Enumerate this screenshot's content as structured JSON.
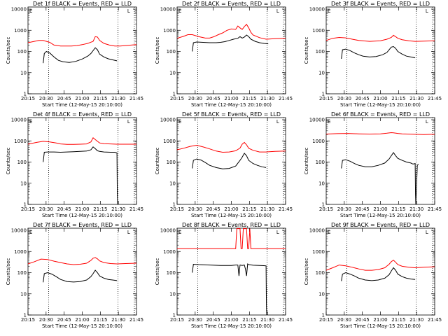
{
  "chart_data": [
    {
      "type": "line",
      "title": "Det 1f BLACK = Events, RED = LLD",
      "xlabel": "Start Time (12-May-15 20:10:00)",
      "ylabel": "Counts/sec",
      "x_ticks": [
        "20:15",
        "20:30",
        "20:45",
        "21:00",
        "21:15",
        "21:30",
        "21:45"
      ],
      "y_ticks": [
        "1",
        "10",
        "100",
        "1000",
        "10000"
      ],
      "xlim": [
        0,
        100
      ],
      "ylim_log10": [
        0,
        4.1
      ],
      "markers": [
        "E",
        "F",
        "L"
      ],
      "series": [
        {
          "name": "RED = LLD",
          "color": "#ff0000",
          "x": [
            0,
            10,
            14,
            20,
            24,
            30,
            40,
            45,
            50,
            55,
            60,
            62,
            64,
            66,
            70,
            75,
            80,
            85,
            90,
            95,
            100
          ],
          "y": [
            260,
            330,
            330,
            270,
            200,
            180,
            180,
            190,
            210,
            240,
            300,
            500,
            480,
            330,
            240,
            200,
            180,
            180,
            190,
            200,
            210
          ]
        },
        {
          "name": "BLACK = Events",
          "color": "#000000",
          "x": [
            14,
            15,
            17,
            20,
            24,
            28,
            32,
            38,
            44,
            50,
            55,
            58,
            62,
            64,
            66,
            70,
            74,
            78,
            82
          ],
          "y": [
            28,
            80,
            100,
            85,
            55,
            38,
            33,
            30,
            34,
            44,
            60,
            80,
            150,
            120,
            75,
            55,
            45,
            40,
            36
          ]
        }
      ]
    },
    {
      "type": "line",
      "title": "Det 2f BLACK = Events, RED = LLD",
      "xlabel": "Start Time (12-May-15 20:10:00)",
      "ylabel": "Counts/sec",
      "x_ticks": [
        "20:15",
        "20:30",
        "20:45",
        "21:00",
        "21:15",
        "21:30",
        "21:45"
      ],
      "y_ticks": [
        "1",
        "10",
        "100",
        "1000",
        "10000"
      ],
      "xlim": [
        0,
        100
      ],
      "ylim_log10": [
        0,
        4.1
      ],
      "markers": [
        "E",
        "F",
        "L"
      ],
      "series": [
        {
          "name": "RED = LLD",
          "color": "#ff0000",
          "x": [
            0,
            6,
            10,
            14,
            20,
            26,
            30,
            34,
            38,
            42,
            46,
            50,
            54,
            56,
            58,
            60,
            62,
            64,
            66,
            68,
            70,
            76,
            82,
            90,
            100
          ],
          "y": [
            420,
            520,
            620,
            620,
            500,
            430,
            430,
            500,
            620,
            750,
            1000,
            1150,
            1100,
            1600,
            1300,
            1100,
            1500,
            1900,
            1300,
            800,
            600,
            450,
            380,
            400,
            420
          ]
        },
        {
          "name": "BLACK = Events",
          "color": "#000000",
          "x": [
            14,
            15,
            18,
            24,
            30,
            36,
            40,
            44,
            48,
            52,
            56,
            58,
            60,
            62,
            64,
            66,
            68,
            72,
            76,
            80,
            84
          ],
          "y": [
            100,
            260,
            280,
            270,
            260,
            260,
            270,
            290,
            330,
            380,
            420,
            500,
            430,
            480,
            600,
            500,
            380,
            300,
            260,
            240,
            230
          ]
        }
      ]
    },
    {
      "type": "line",
      "title": "Det 3f BLACK = Events, RED = LLD",
      "xlabel": "Start Time (12-May-15 20:10:00)",
      "ylabel": "Counts/sec",
      "x_ticks": [
        "20:15",
        "20:30",
        "20:45",
        "21:00",
        "21:15",
        "21:30",
        "21:45"
      ],
      "y_ticks": [
        "1",
        "10",
        "100",
        "1000",
        "10000"
      ],
      "xlim": [
        0,
        100
      ],
      "ylim_log10": [
        0,
        4.1
      ],
      "markers": [
        "E",
        "F",
        "L"
      ],
      "series": [
        {
          "name": "RED = LLD",
          "color": "#ff0000",
          "x": [
            0,
            6,
            12,
            18,
            24,
            30,
            40,
            50,
            56,
            60,
            62,
            64,
            66,
            70,
            76,
            82,
            90,
            100
          ],
          "y": [
            330,
            420,
            460,
            440,
            380,
            330,
            300,
            320,
            380,
            460,
            580,
            500,
            420,
            360,
            320,
            300,
            310,
            320
          ]
        },
        {
          "name": "BLACK = Events",
          "color": "#000000",
          "x": [
            14,
            15,
            18,
            22,
            26,
            30,
            34,
            40,
            46,
            52,
            56,
            58,
            60,
            62,
            64,
            66,
            70,
            74,
            78,
            82
          ],
          "y": [
            45,
            120,
            130,
            110,
            85,
            70,
            60,
            55,
            58,
            70,
            90,
            120,
            160,
            170,
            140,
            100,
            75,
            60,
            55,
            50
          ]
        }
      ]
    },
    {
      "type": "line",
      "title": "Det 4f BLACK = Events, RED = LLD",
      "xlabel": "Start Time (12-May-15 20:10:00)",
      "ylabel": "Counts/sec",
      "x_ticks": [
        "20:15",
        "20:30",
        "20:45",
        "21:00",
        "21:15",
        "21:30",
        "21:45"
      ],
      "y_ticks": [
        "1",
        "10",
        "100",
        "1000",
        "10000"
      ],
      "xlim": [
        0,
        100
      ],
      "ylim_log10": [
        0,
        4.1
      ],
      "markers": [
        "E",
        "F",
        "L"
      ],
      "series": [
        {
          "name": "RED = LLD",
          "color": "#ff0000",
          "x": [
            0,
            8,
            14,
            20,
            26,
            30,
            36,
            42,
            48,
            54,
            58,
            60,
            62,
            64,
            66,
            70,
            76,
            82,
            90,
            100
          ],
          "y": [
            700,
            850,
            950,
            900,
            800,
            720,
            680,
            680,
            700,
            720,
            900,
            1400,
            1150,
            950,
            800,
            740,
            720,
            700,
            700,
            700
          ]
        },
        {
          "name": "BLACK = Events",
          "color": "#000000",
          "x": [
            14,
            15,
            18,
            24,
            30,
            36,
            42,
            48,
            54,
            58,
            60,
            62,
            64,
            66,
            70,
            76,
            80,
            82,
            82.3,
            82.6
          ],
          "y": [
            100,
            290,
            300,
            300,
            290,
            300,
            310,
            320,
            330,
            380,
            520,
            430,
            340,
            320,
            300,
            290,
            290,
            270,
            3,
            1
          ]
        }
      ]
    },
    {
      "type": "line",
      "title": "Det 5f BLACK = Events, RED = LLD",
      "xlabel": "Start Time (12-May-15 20:10:00)",
      "ylabel": "Counts/sec",
      "x_ticks": [
        "20:15",
        "20:30",
        "20:45",
        "21:00",
        "21:15",
        "21:30",
        "21:45"
      ],
      "y_ticks": [
        "1",
        "10",
        "100",
        "1000",
        "10000"
      ],
      "xlim": [
        0,
        100
      ],
      "ylim_log10": [
        0,
        4.1
      ],
      "markers": [
        "E",
        "F",
        "L"
      ],
      "series": [
        {
          "name": "RED = LLD",
          "color": "#ff0000",
          "x": [
            0,
            6,
            12,
            18,
            24,
            30,
            36,
            42,
            48,
            54,
            58,
            60,
            62,
            64,
            66,
            70,
            76,
            82,
            90,
            100
          ],
          "y": [
            380,
            450,
            550,
            620,
            520,
            420,
            330,
            290,
            300,
            340,
            460,
            700,
            850,
            650,
            450,
            360,
            300,
            300,
            320,
            330
          ]
        },
        {
          "name": "BLACK = Events",
          "color": "#000000",
          "x": [
            14,
            15,
            18,
            22,
            26,
            30,
            36,
            42,
            48,
            54,
            58,
            60,
            62,
            64,
            66,
            70,
            74,
            78,
            82
          ],
          "y": [
            50,
            120,
            140,
            125,
            95,
            70,
            55,
            48,
            50,
            65,
            120,
            170,
            260,
            200,
            120,
            85,
            70,
            60,
            55
          ]
        }
      ]
    },
    {
      "type": "line",
      "title": "Det 6f BLACK = Events, RED = LLD",
      "xlabel": "Start Time (12-May-15 20:10:00)",
      "ylabel": "Counts/sec",
      "x_ticks": [
        "20:15",
        "20:30",
        "20:45",
        "21:00",
        "21:15",
        "21:30",
        "21:45"
      ],
      "y_ticks": [
        "1",
        "10",
        "100",
        "1000",
        "10000"
      ],
      "xlim": [
        0,
        100
      ],
      "ylim_log10": [
        0,
        4.1
      ],
      "markers": [
        "E",
        "F",
        "L"
      ],
      "series": [
        {
          "name": "RED = LLD",
          "color": "#ff0000",
          "x": [
            0,
            10,
            20,
            30,
            40,
            50,
            56,
            60,
            62,
            66,
            70,
            80,
            90,
            100
          ],
          "y": [
            2100,
            2200,
            2250,
            2150,
            2100,
            2150,
            2300,
            2450,
            2400,
            2250,
            2150,
            2050,
            2000,
            2050
          ]
        },
        {
          "name": "BLACK = Events",
          "color": "#000000",
          "x": [
            14,
            15,
            18,
            22,
            26,
            30,
            36,
            42,
            48,
            54,
            58,
            60,
            62,
            64,
            66,
            70,
            74,
            78,
            80,
            82,
            82.3,
            82.6,
            84,
            85
          ],
          "y": [
            50,
            120,
            130,
            110,
            85,
            70,
            60,
            60,
            70,
            90,
            140,
            200,
            280,
            200,
            150,
            120,
            100,
            90,
            80,
            85,
            3,
            1,
            70,
            80
          ]
        }
      ]
    },
    {
      "type": "line",
      "title": "Det 7f BLACK = Events, RED = LLD",
      "xlabel": "Start Time (12-May-15 20:10:00)",
      "ylabel": "Counts/sec",
      "x_ticks": [
        "20:15",
        "20:30",
        "20:45",
        "21:00",
        "21:15",
        "21:30",
        "21:45"
      ],
      "y_ticks": [
        "1",
        "10",
        "100",
        "1000",
        "10000"
      ],
      "xlim": [
        0,
        100
      ],
      "ylim_log10": [
        0,
        4.1
      ],
      "markers": [
        "E",
        "F",
        "L"
      ],
      "series": [
        {
          "name": "RED = LLD",
          "color": "#ff0000",
          "x": [
            0,
            6,
            12,
            18,
            24,
            30,
            36,
            42,
            48,
            54,
            58,
            60,
            62,
            64,
            66,
            70,
            76,
            82,
            90,
            100
          ],
          "y": [
            260,
            330,
            440,
            420,
            350,
            300,
            260,
            240,
            250,
            280,
            380,
            480,
            520,
            450,
            360,
            300,
            270,
            260,
            270,
            280
          ]
        },
        {
          "name": "BLACK = Events",
          "color": "#000000",
          "x": [
            14,
            15,
            18,
            22,
            26,
            30,
            36,
            42,
            48,
            54,
            58,
            60,
            62,
            64,
            66,
            70,
            74,
            78,
            82
          ],
          "y": [
            35,
            90,
            100,
            85,
            65,
            48,
            38,
            36,
            38,
            45,
            65,
            90,
            130,
            100,
            70,
            55,
            48,
            45,
            42
          ]
        }
      ]
    },
    {
      "type": "line",
      "title": "Det 8f BLACK = Events, RED = LLD",
      "xlabel": "Start Time (12-May-15 20:10:00)",
      "ylabel": "Counts/sec",
      "x_ticks": [
        "20:15",
        "20:30",
        "20:45",
        "21:00",
        "21:15",
        "21:30",
        "21:45"
      ],
      "y_ticks": [
        "1",
        "10",
        "100",
        "1000",
        "10000"
      ],
      "xlim": [
        0,
        100
      ],
      "ylim_log10": [
        0,
        4.1
      ],
      "markers": [
        "E",
        "F",
        "L"
      ],
      "series": [
        {
          "name": "RED = LLD",
          "color": "#ff0000",
          "x": [
            0,
            20,
            40,
            54,
            55,
            56,
            58,
            59,
            60,
            61,
            62,
            63,
            64,
            65,
            66,
            67,
            68,
            72,
            82,
            90,
            100
          ],
          "y": [
            1350,
            1350,
            1350,
            1350,
            12000,
            12000,
            12000,
            1350,
            1350,
            12000,
            12000,
            12000,
            12000,
            1350,
            1350,
            12000,
            1350,
            1350,
            1350,
            1350,
            1350
          ]
        },
        {
          "name": "BLACK = Events",
          "color": "#000000",
          "x": [
            14,
            15,
            20,
            30,
            40,
            50,
            54,
            56,
            57,
            58,
            60,
            62,
            63,
            64,
            65,
            66,
            70,
            76,
            80,
            82,
            82.3,
            82.6
          ],
          "y": [
            100,
            250,
            240,
            230,
            220,
            220,
            230,
            230,
            70,
            230,
            220,
            230,
            150,
            70,
            260,
            240,
            225,
            220,
            215,
            210,
            3,
            1
          ]
        }
      ]
    },
    {
      "type": "line",
      "title": "Det 9f BLACK = Events, RED = LLD",
      "xlabel": "Start Time (12-May-15 20:10:00)",
      "ylabel": "Counts/sec",
      "x_ticks": [
        "20:15",
        "20:30",
        "20:45",
        "21:00",
        "21:15",
        "21:30",
        "21:45"
      ],
      "y_ticks": [
        "1",
        "10",
        "100",
        "1000",
        "10000"
      ],
      "xlim": [
        0,
        100
      ],
      "ylim_log10": [
        0,
        4.1
      ],
      "markers": [
        "E",
        "F",
        "L"
      ],
      "series": [
        {
          "name": "RED = LLD",
          "color": "#ff0000",
          "x": [
            0,
            6,
            12,
            18,
            24,
            30,
            36,
            42,
            48,
            54,
            58,
            60,
            62,
            64,
            66,
            70,
            76,
            82,
            90,
            100
          ],
          "y": [
            130,
            170,
            230,
            210,
            180,
            150,
            130,
            130,
            140,
            170,
            250,
            330,
            390,
            310,
            240,
            200,
            180,
            170,
            180,
            190
          ]
        },
        {
          "name": "BLACK = Events",
          "color": "#000000",
          "x": [
            14,
            15,
            18,
            22,
            26,
            30,
            36,
            42,
            48,
            54,
            58,
            60,
            62,
            64,
            66,
            70,
            74,
            78,
            82
          ],
          "y": [
            40,
            85,
            100,
            85,
            70,
            55,
            45,
            42,
            45,
            55,
            80,
            120,
            170,
            130,
            85,
            65,
            55,
            50,
            48
          ]
        }
      ]
    }
  ]
}
